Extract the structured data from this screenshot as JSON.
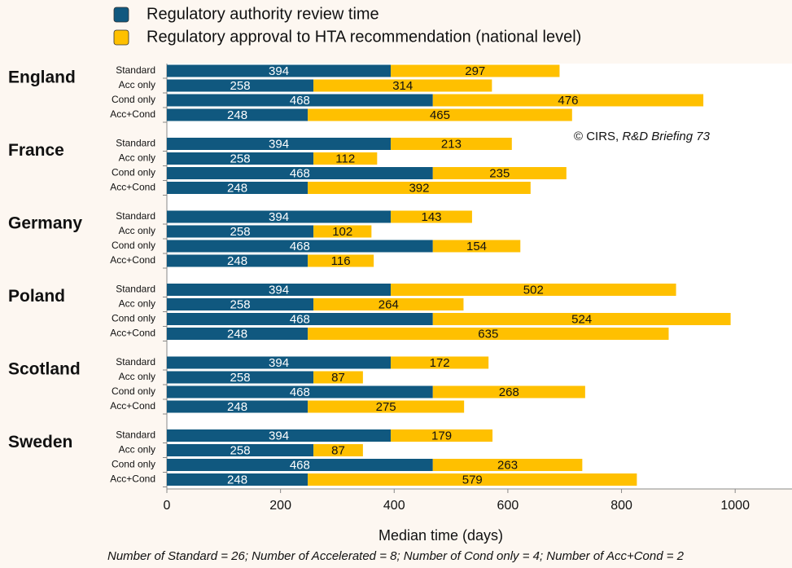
{
  "chart_data": {
    "type": "stacked-barh",
    "group_labels": [
      "England",
      "France",
      "Germany",
      "Poland",
      "Scotland",
      "Sweden"
    ],
    "categories": [
      "Standard",
      "Acc only",
      "Cond only",
      "Acc+Cond",
      "Standard",
      "Acc only",
      "Cond only",
      "Acc+Cond",
      "Standard",
      "Acc only",
      "Cond only",
      "Acc+Cond",
      "Standard",
      "Acc only",
      "Cond only",
      "Acc+Cond",
      "Standard",
      "Acc only",
      "Cond only",
      "Acc+Cond",
      "Standard",
      "Acc only",
      "Cond only",
      "Acc+Cond"
    ],
    "series": [
      {
        "name": "Regulatory authority review time",
        "color": "#10587f",
        "values": [
          394,
          258,
          468,
          248,
          394,
          258,
          468,
          248,
          394,
          258,
          468,
          248,
          394,
          258,
          468,
          248,
          394,
          258,
          468,
          248,
          394,
          258,
          468,
          248
        ]
      },
      {
        "name": "Regulatory approval to HTA recommendation (national level)",
        "color": "#ffc000",
        "values": [
          297,
          314,
          476,
          465,
          213,
          112,
          235,
          392,
          143,
          102,
          154,
          116,
          502,
          264,
          524,
          635,
          172,
          87,
          268,
          275,
          179,
          87,
          263,
          579
        ]
      }
    ],
    "xlim": [
      0,
      1100
    ],
    "xticks": [
      0,
      200,
      400,
      600,
      800,
      1000
    ],
    "xlabel": "Median time (days)",
    "source": {
      "prefix": "© CIRS,",
      "italic": "R&D Briefing 73"
    },
    "footnote": "Number of Standard = 26; Number of Accelerated = 8; Number of Cond only = 4; Number of Acc+Cond = 2"
  }
}
